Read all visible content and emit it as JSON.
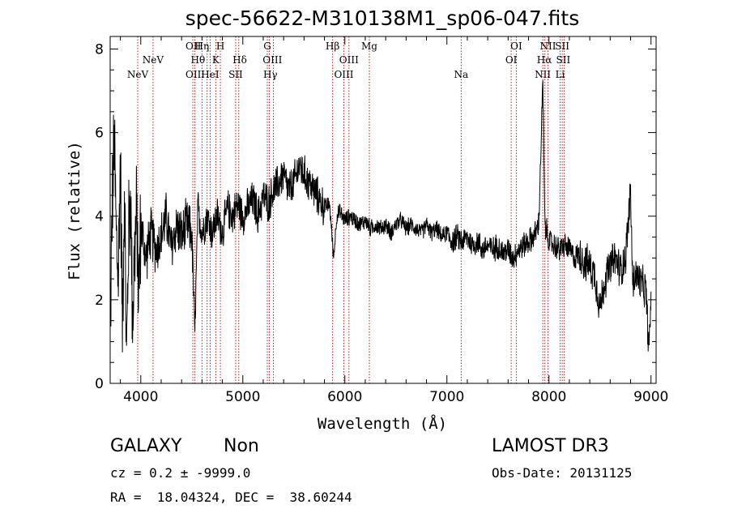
{
  "chart_data": {
    "type": "line",
    "title": "spec-56622-M310138M1_sp06-047.fits",
    "xlabel": "Wavelength (Å)",
    "ylabel": "Flux (relative)",
    "xlim": [
      3700,
      9050
    ],
    "ylim": [
      0,
      8.3
    ],
    "x_ticks": [
      4000,
      5000,
      6000,
      7000,
      8000,
      9000
    ],
    "y_ticks": [
      0,
      2,
      4,
      6,
      8
    ],
    "grid": false,
    "series": [
      {
        "name": "spectrum",
        "anchors": [
          [
            3700,
            1.2
          ],
          [
            3720,
            4.2
          ],
          [
            3740,
            5.8
          ],
          [
            3760,
            3.5
          ],
          [
            3780,
            2.5
          ],
          [
            3800,
            5.5
          ],
          [
            3820,
            1.5
          ],
          [
            3840,
            4.8
          ],
          [
            3860,
            0.5
          ],
          [
            3880,
            3.5
          ],
          [
            3900,
            4.5
          ],
          [
            3920,
            1.5
          ],
          [
            3940,
            3.2
          ],
          [
            3960,
            4.0
          ],
          [
            3980,
            2.2
          ],
          [
            4000,
            3.8
          ],
          [
            4050,
            3.0
          ],
          [
            4100,
            3.6
          ],
          [
            4150,
            3.2
          ],
          [
            4200,
            3.5
          ],
          [
            4250,
            4.0
          ],
          [
            4300,
            3.2
          ],
          [
            4350,
            3.8
          ],
          [
            4400,
            3.5
          ],
          [
            4450,
            3.8
          ],
          [
            4500,
            3.6
          ],
          [
            4530,
            1.2
          ],
          [
            4560,
            4.2
          ],
          [
            4600,
            3.6
          ],
          [
            4650,
            4.0
          ],
          [
            4700,
            3.6
          ],
          [
            4750,
            4.0
          ],
          [
            4800,
            3.6
          ],
          [
            4850,
            4.2
          ],
          [
            4900,
            4.0
          ],
          [
            4950,
            4.3
          ],
          [
            5000,
            4.0
          ],
          [
            5050,
            4.2
          ],
          [
            5100,
            4.4
          ],
          [
            5150,
            4.0
          ],
          [
            5200,
            4.5
          ],
          [
            5250,
            4.3
          ],
          [
            5300,
            4.6
          ],
          [
            5350,
            4.8
          ],
          [
            5400,
            5.0
          ],
          [
            5450,
            4.6
          ],
          [
            5500,
            4.8
          ],
          [
            5550,
            5.2
          ],
          [
            5600,
            5.0
          ],
          [
            5650,
            4.8
          ],
          [
            5700,
            4.6
          ],
          [
            5750,
            4.4
          ],
          [
            5800,
            4.2
          ],
          [
            5850,
            4.3
          ],
          [
            5890,
            3.0
          ],
          [
            5920,
            4.0
          ],
          [
            5950,
            4.1
          ],
          [
            6000,
            3.9
          ],
          [
            6050,
            4.0
          ],
          [
            6100,
            3.9
          ],
          [
            6150,
            3.8
          ],
          [
            6200,
            3.9
          ],
          [
            6250,
            3.7
          ],
          [
            6300,
            3.8
          ],
          [
            6350,
            3.7
          ],
          [
            6400,
            3.8
          ],
          [
            6450,
            3.6
          ],
          [
            6500,
            3.8
          ],
          [
            6550,
            3.9
          ],
          [
            6600,
            3.7
          ],
          [
            6650,
            3.8
          ],
          [
            6700,
            3.7
          ],
          [
            6750,
            3.6
          ],
          [
            6800,
            3.8
          ],
          [
            6850,
            3.6
          ],
          [
            6900,
            3.7
          ],
          [
            6950,
            3.5
          ],
          [
            7000,
            3.6
          ],
          [
            7050,
            3.4
          ],
          [
            7100,
            3.5
          ],
          [
            7150,
            3.4
          ],
          [
            7200,
            3.5
          ],
          [
            7250,
            3.3
          ],
          [
            7300,
            3.4
          ],
          [
            7350,
            3.2
          ],
          [
            7400,
            3.3
          ],
          [
            7450,
            3.2
          ],
          [
            7500,
            3.3
          ],
          [
            7550,
            3.1
          ],
          [
            7600,
            3.2
          ],
          [
            7650,
            3.0
          ],
          [
            7700,
            3.2
          ],
          [
            7750,
            3.3
          ],
          [
            7800,
            3.4
          ],
          [
            7850,
            3.5
          ],
          [
            7900,
            3.8
          ],
          [
            7940,
            7.2
          ],
          [
            7960,
            3.8
          ],
          [
            8000,
            3.4
          ],
          [
            8050,
            3.3
          ],
          [
            8100,
            3.2
          ],
          [
            8150,
            3.3
          ],
          [
            8200,
            3.2
          ],
          [
            8250,
            3.0
          ],
          [
            8300,
            3.1
          ],
          [
            8350,
            2.9
          ],
          [
            8400,
            2.8
          ],
          [
            8450,
            2.6
          ],
          [
            8500,
            1.8
          ],
          [
            8550,
            2.5
          ],
          [
            8600,
            2.8
          ],
          [
            8650,
            3.0
          ],
          [
            8700,
            2.7
          ],
          [
            8750,
            3.0
          ],
          [
            8800,
            4.6
          ],
          [
            8820,
            2.4
          ],
          [
            8850,
            2.6
          ],
          [
            8900,
            2.4
          ],
          [
            8950,
            2.2
          ],
          [
            8980,
            0.8
          ],
          [
            9000,
            2.0
          ]
        ]
      }
    ],
    "line_markers": [
      {
        "label": "NeV",
        "x": 3970,
        "row": 3
      },
      {
        "label": "NeV",
        "x": 4120,
        "row": 2
      },
      {
        "label": "OII",
        "x": 4515,
        "row": 1
      },
      {
        "label": "OII",
        "x": 4515,
        "row": 3
      },
      {
        "label": "Hη",
        "x": 4600,
        "row": 1
      },
      {
        "label": "Hθ",
        "x": 4560,
        "row": 2
      },
      {
        "label": "HeI",
        "x": 4680,
        "row": 3
      },
      {
        "label": "H",
        "x": 4780,
        "row": 1
      },
      {
        "label": "K",
        "x": 4735,
        "row": 2
      },
      {
        "label": "SII",
        "x": 4930,
        "row": 3
      },
      {
        "label": "Hδ",
        "x": 4970,
        "row": 2
      },
      {
        "label": "G",
        "x": 5240,
        "row": 1
      },
      {
        "label": "OIII",
        "x": 5290,
        "row": 2
      },
      {
        "label": "Hγ",
        "x": 5270,
        "row": 3
      },
      {
        "label": "Hβ",
        "x": 5880,
        "row": 1
      },
      {
        "label": "OIII",
        "x": 6040,
        "row": 2
      },
      {
        "label": "OIII",
        "x": 5990,
        "row": 3
      },
      {
        "label": "Mg",
        "x": 6240,
        "row": 1
      },
      {
        "label": "Na",
        "x": 7140,
        "row": 3
      },
      {
        "label": "OI",
        "x": 7680,
        "row": 1
      },
      {
        "label": "OI",
        "x": 7630,
        "row": 2
      },
      {
        "label": "NII",
        "x": 7990,
        "row": 1
      },
      {
        "label": "Hα",
        "x": 7955,
        "row": 2
      },
      {
        "label": "NII",
        "x": 7940,
        "row": 3
      },
      {
        "label": "SII",
        "x": 8130,
        "row": 1
      },
      {
        "label": "SII",
        "x": 8140,
        "row": 2
      },
      {
        "label": "Li",
        "x": 8110,
        "row": 3
      }
    ],
    "marker_positions": [
      3970,
      4120,
      4510,
      4530,
      4600,
      4650,
      4680,
      4735,
      4780,
      4930,
      4960,
      5240,
      5260,
      5300,
      5880,
      5990,
      6040,
      6240,
      7140,
      7630,
      7680,
      7940,
      7960,
      7990,
      8110,
      8130,
      8150
    ]
  },
  "info": {
    "object_class": "GALAXY",
    "subclass": "Non",
    "survey": "LAMOST DR3",
    "cz": "cz = 0.2 ± -9999.0",
    "obs_date": "Obs-Date: 20131125",
    "coords": "RA =  18.04324, DEC =  38.60244"
  },
  "colors": {
    "line": "#000000",
    "marker": "#b22222"
  }
}
